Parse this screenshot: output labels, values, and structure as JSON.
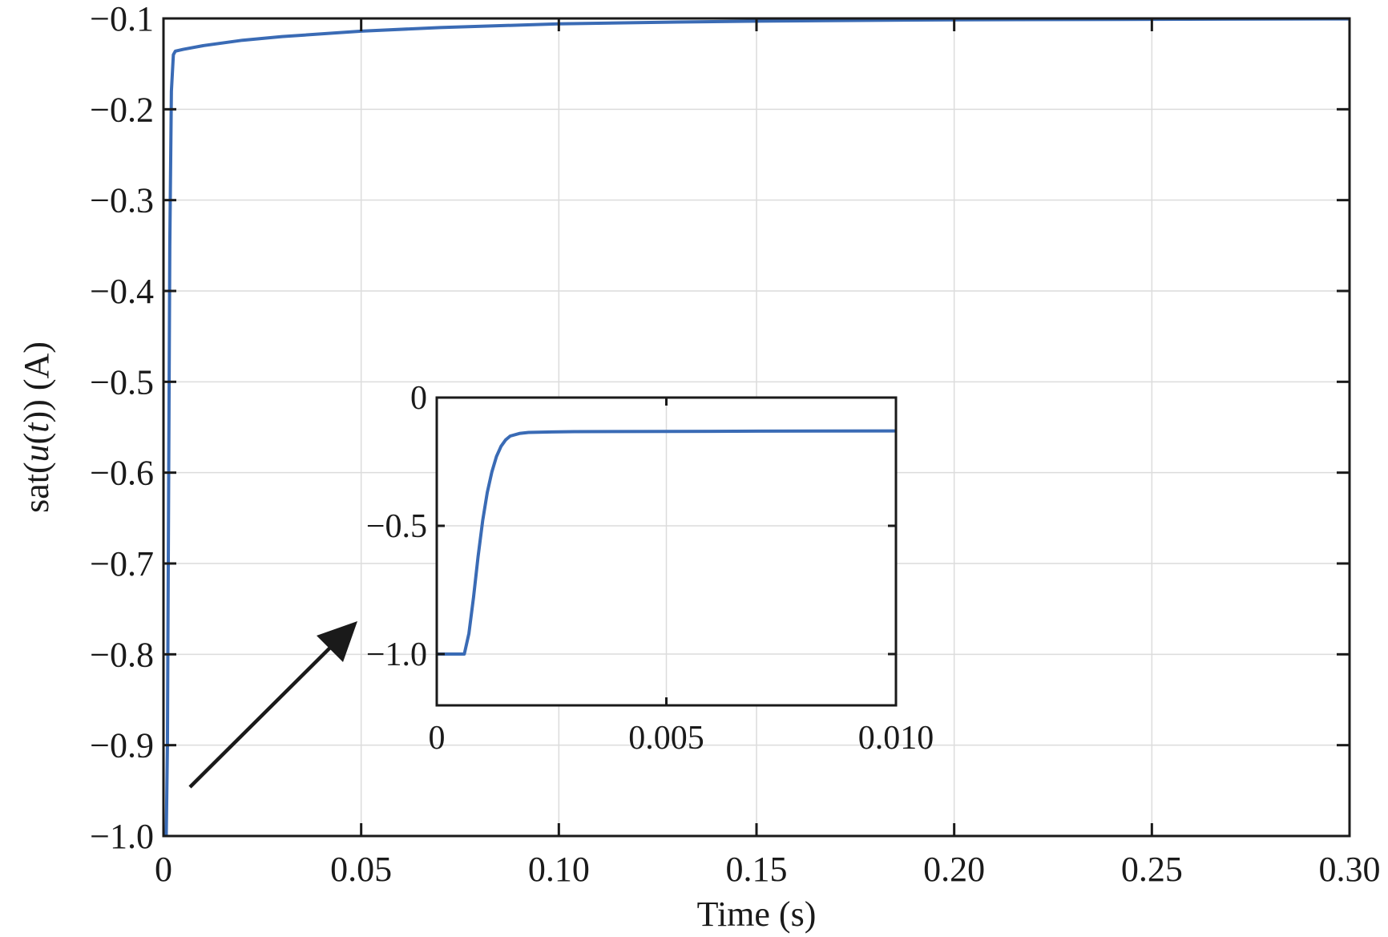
{
  "chart_data": [
    {
      "type": "line",
      "title": "",
      "xlabel": "Time (s)",
      "ylabel_parts": [
        "sat(",
        "u",
        "(",
        "t",
        ")) (A)"
      ],
      "xlim": [
        0,
        0.3
      ],
      "ylim": [
        -1.0,
        -0.1
      ],
      "x_ticks": [
        {
          "value": 0,
          "label": "0"
        },
        {
          "value": 0.05,
          "label": "0.05"
        },
        {
          "value": 0.1,
          "label": "0.10"
        },
        {
          "value": 0.15,
          "label": "0.15"
        },
        {
          "value": 0.2,
          "label": "0.20"
        },
        {
          "value": 0.25,
          "label": "0.25"
        },
        {
          "value": 0.3,
          "label": "0.30"
        }
      ],
      "y_ticks": [
        {
          "value": -0.1,
          "label": "−0.1"
        },
        {
          "value": -0.2,
          "label": "−0.2"
        },
        {
          "value": -0.3,
          "label": "−0.3"
        },
        {
          "value": -0.4,
          "label": "−0.4"
        },
        {
          "value": -0.5,
          "label": "−0.5"
        },
        {
          "value": -0.6,
          "label": "−0.6"
        },
        {
          "value": -0.7,
          "label": "−0.7"
        },
        {
          "value": -0.8,
          "label": "−0.8"
        },
        {
          "value": -0.9,
          "label": "−0.9"
        },
        {
          "value": -1.0,
          "label": "−1.0"
        }
      ],
      "grid": true,
      "series": [
        {
          "color": "#3a6bb5",
          "x": [
            0,
            0.0007,
            0.001,
            0.0013,
            0.0016,
            0.002,
            0.0025,
            0.003,
            0.005,
            0.01,
            0.02,
            0.03,
            0.05,
            0.07,
            0.1,
            0.13,
            0.15,
            0.2,
            0.25,
            0.3
          ],
          "y": [
            -1.0,
            -1.0,
            -0.9,
            -0.62,
            -0.35,
            -0.18,
            -0.14,
            -0.136,
            -0.134,
            -0.13,
            -0.124,
            -0.12,
            -0.114,
            -0.11,
            -0.106,
            -0.104,
            -0.103,
            -0.1015,
            -0.101,
            -0.1005
          ]
        }
      ]
    },
    {
      "type": "line",
      "role": "inset",
      "xlim": [
        0,
        0.01
      ],
      "ylim": [
        -1.2,
        0
      ],
      "x_ticks": [
        {
          "value": 0,
          "label": "0"
        },
        {
          "value": 0.005,
          "label": "0.005"
        },
        {
          "value": 0.01,
          "label": "0.010"
        }
      ],
      "y_ticks": [
        {
          "value": 0,
          "label": "0"
        },
        {
          "value": -0.5,
          "label": "−0.5"
        },
        {
          "value": -1.0,
          "label": "−1.0"
        }
      ],
      "grid": true,
      "series": [
        {
          "color": "#3a6bb5",
          "x": [
            0,
            0.0006,
            0.0007,
            0.0008,
            0.0009,
            0.001,
            0.0011,
            0.0012,
            0.0013,
            0.0014,
            0.0015,
            0.0016,
            0.0018,
            0.002,
            0.0025,
            0.003,
            0.005,
            0.007,
            0.01
          ],
          "y": [
            -1.0,
            -1.0,
            -0.92,
            -0.78,
            -0.62,
            -0.48,
            -0.37,
            -0.29,
            -0.23,
            -0.19,
            -0.165,
            -0.15,
            -0.14,
            -0.136,
            -0.134,
            -0.133,
            -0.132,
            -0.131,
            -0.13
          ]
        }
      ]
    }
  ],
  "colors": {
    "series": "#3a6bb5",
    "axes": "#1a1a1a",
    "grid": "#dcdcdc",
    "arrow": "#1a1a1a"
  }
}
